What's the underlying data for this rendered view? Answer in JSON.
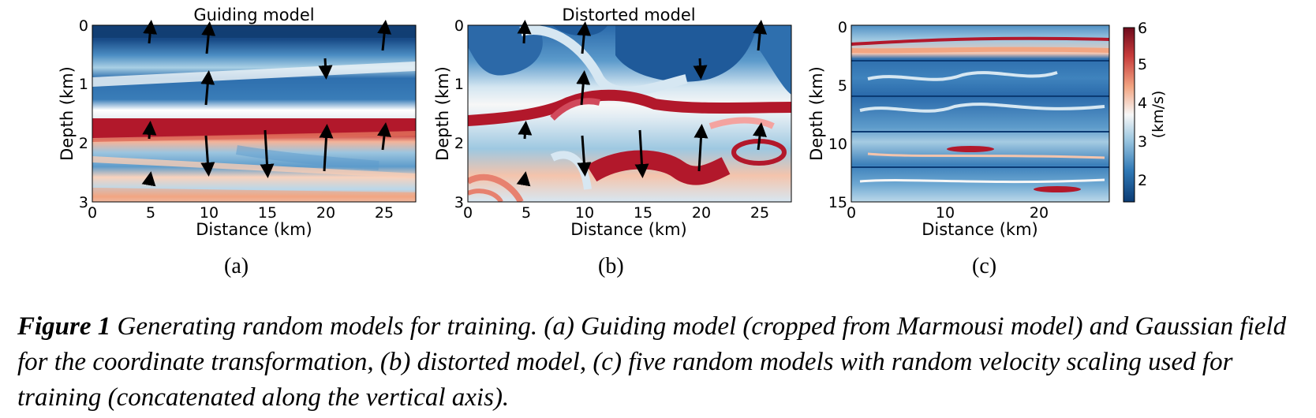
{
  "panels": [
    {
      "id": "a",
      "title": "Guiding model",
      "xlabel": "Distance (km)",
      "ylabel": "Depth (km)",
      "xticks": [
        "0",
        "5",
        "10",
        "15",
        "20",
        "25"
      ],
      "yticks": [
        "0",
        "1",
        "2",
        "3"
      ],
      "sublabel": "(a)"
    },
    {
      "id": "b",
      "title": "Distorted model",
      "xlabel": "Distance (km)",
      "ylabel": "Depth (km)",
      "xticks": [
        "0",
        "5",
        "10",
        "15",
        "20",
        "25"
      ],
      "yticks": [
        "0",
        "1",
        "2",
        "3"
      ],
      "sublabel": "(b)"
    },
    {
      "id": "c",
      "title": "",
      "xlabel": "Distance (km)",
      "ylabel": "Depth (km)",
      "xticks": [
        "0",
        "10",
        "20"
      ],
      "yticks": [
        "0",
        "5",
        "10",
        "15"
      ],
      "sublabel": "(c)"
    }
  ],
  "colorbar": {
    "label": "(km/s)",
    "ticks": [
      "2",
      "3",
      "4",
      "5",
      "6"
    ],
    "colors": [
      "#0b3b74",
      "#2f79b6",
      "#9ec8e1",
      "#f7f7f7",
      "#f2a582",
      "#c63a3a",
      "#6e0a1c"
    ]
  },
  "caption": {
    "label": "Figure 1",
    "text": " Generating random models for training. (a) Guiding model (cropped from Marmousi model) and Gaussian field for the coordinate transformation, (b) distorted model, (c) five random models with random velocity scaling used for training (concatenated along the vertical axis)."
  },
  "chart_data": [
    {
      "type": "heatmap",
      "title": "Guiding model",
      "xlabel": "Distance (km)",
      "ylabel": "Depth (km)",
      "xlim": [
        0,
        27.5
      ],
      "ylim": [
        3,
        0
      ],
      "colorbar_range_km_s": [
        1.5,
        6
      ]
    },
    {
      "type": "heatmap",
      "title": "Distorted model",
      "xlabel": "Distance (km)",
      "ylabel": "Depth (km)",
      "xlim": [
        0,
        27.5
      ],
      "ylim": [
        3,
        0
      ],
      "colorbar_range_km_s": [
        1.5,
        6
      ]
    },
    {
      "type": "heatmap",
      "title": "",
      "xlabel": "Distance (km)",
      "ylabel": "Depth (km)",
      "xlim": [
        0,
        27.5
      ],
      "ylim": [
        15,
        0
      ],
      "colorbar_label": "(km/s)",
      "colorbar_range_km_s": [
        1.5,
        6
      ]
    }
  ]
}
